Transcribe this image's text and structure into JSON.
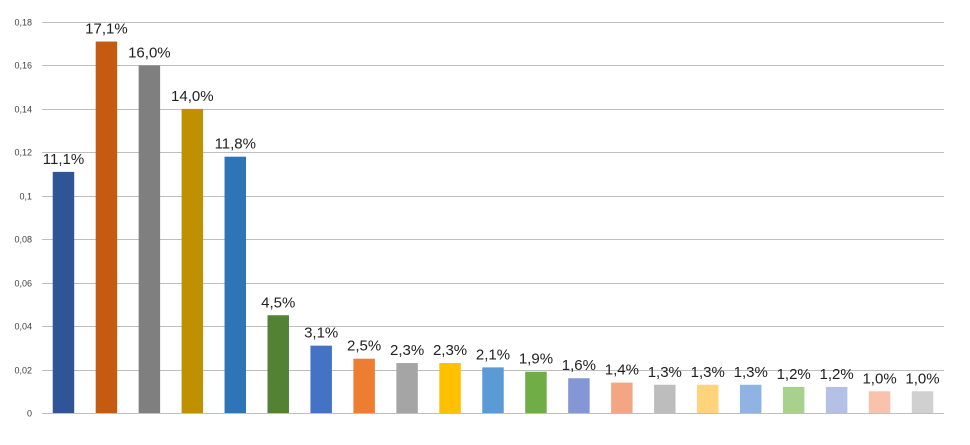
{
  "chart_data": {
    "type": "bar",
    "title": "",
    "xlabel": "",
    "ylabel": "",
    "ylim": [
      0,
      0.18
    ],
    "yticks": [
      0,
      0.02,
      0.04,
      0.06,
      0.08,
      0.1,
      0.12,
      0.14,
      0.16,
      0.18
    ],
    "ytick_labels": [
      "0",
      "0,02",
      "0,04",
      "0,06",
      "0,08",
      "0,1",
      "0,12",
      "0,14",
      "0,16",
      "0,18"
    ],
    "grid": true,
    "legend": "none",
    "values": [
      0.111,
      0.171,
      0.16,
      0.14,
      0.118,
      0.045,
      0.031,
      0.025,
      0.023,
      0.023,
      0.021,
      0.019,
      0.016,
      0.014,
      0.013,
      0.013,
      0.013,
      0.012,
      0.012,
      0.01,
      0.01
    ],
    "data_labels": [
      "11,1%",
      "17,1%",
      "16,0%",
      "14,0%",
      "11,8%",
      "4,5%",
      "3,1%",
      "2,5%",
      "2,3%",
      "2,3%",
      "2,1%",
      "1,9%",
      "1,6%",
      "1,4%",
      "1,3%",
      "1,3%",
      "1,3%",
      "1,2%",
      "1,2%",
      "1,0%",
      "1,0%"
    ],
    "colors": [
      "#2f5597",
      "#c55a11",
      "#7f7f7f",
      "#bf9000",
      "#2e75b6",
      "#548235",
      "#4472c4",
      "#ed7d31",
      "#a5a5a5",
      "#ffc000",
      "#5b9bd5",
      "#70ad47",
      "#8497d4",
      "#f4a582",
      "#bdbdbd",
      "#ffd47a",
      "#8fb4e3",
      "#a9d18e",
      "#b4c0e6",
      "#f8c2ad",
      "#d0d0d0"
    ]
  }
}
